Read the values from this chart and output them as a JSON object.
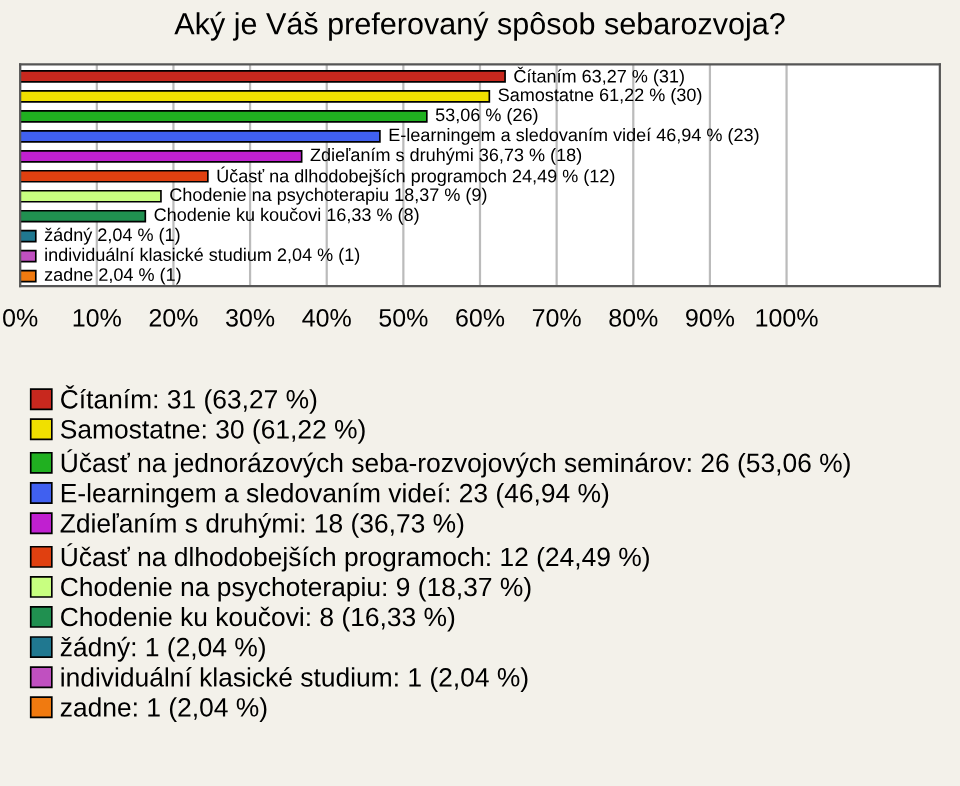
{
  "chart_data": {
    "type": "bar",
    "orientation": "horizontal",
    "title": "Aký je Váš preferovaný spôsob sebarozvoja?",
    "categories": [
      null,
      null,
      null,
      null,
      null,
      null,
      null,
      null,
      null,
      null,
      null
    ],
    "series": [
      {
        "name": "Čítaním: 31 (63,27 %)",
        "color": "#c8281e",
        "values": [
          63.27,
          null,
          null,
          null,
          null,
          null,
          null,
          null,
          null,
          null,
          null
        ],
        "value_labels": [
          "Čítaním 63,27 % (31)",
          null,
          null,
          null,
          null,
          null,
          null,
          null,
          null,
          null,
          null
        ]
      },
      {
        "name": "Samostatne: 30 (61,22 %)",
        "color": "#f0e000",
        "values": [
          null,
          61.22,
          null,
          null,
          null,
          null,
          null,
          null,
          null,
          null,
          null
        ],
        "value_labels": [
          null,
          "Samostatne 61,22 % (30)",
          null,
          null,
          null,
          null,
          null,
          null,
          null,
          null,
          null
        ]
      },
      {
        "name": "Účasť na jednorázových seba-rozvojových seminárov: 26 (53,06 %)",
        "color": "#20b020",
        "values": [
          null,
          null,
          53.06,
          null,
          null,
          null,
          null,
          null,
          null,
          null,
          null
        ],
        "value_labels": [
          null,
          null,
          "53,06 % (26)",
          null,
          null,
          null,
          null,
          null,
          null,
          null,
          null
        ]
      },
      {
        "name": "E-learningem a sledovaním videí: 23 (46,94 %)",
        "color": "#4060f0",
        "values": [
          null,
          null,
          null,
          46.94,
          null,
          null,
          null,
          null,
          null,
          null,
          null
        ],
        "value_labels": [
          null,
          null,
          null,
          "E-learningem a sledovaním videí 46,94 % (23)",
          null,
          null,
          null,
          null,
          null,
          null,
          null
        ]
      },
      {
        "name": "Zdieľaním s druhými: 18 (36,73 %)",
        "color": "#c020d0",
        "values": [
          null,
          null,
          null,
          null,
          36.73,
          null,
          null,
          null,
          null,
          null,
          null
        ],
        "value_labels": [
          null,
          null,
          null,
          null,
          "Zdieľaním s druhými 36,73 % (18)",
          null,
          null,
          null,
          null,
          null,
          null
        ]
      },
      {
        "name": "Účasť na dlhodobejších programoch: 12 (24,49 %)",
        "color": "#e04010",
        "values": [
          null,
          null,
          null,
          null,
          null,
          24.49,
          null,
          null,
          null,
          null,
          null
        ],
        "value_labels": [
          null,
          null,
          null,
          null,
          null,
          "Účasť na dlhodobejších programoch 24,49 % (12)",
          null,
          null,
          null,
          null,
          null
        ]
      },
      {
        "name": "Chodenie na psychoterapiu: 9 (18,37 %)",
        "color": "#c8ff80",
        "values": [
          null,
          null,
          null,
          null,
          null,
          null,
          18.37,
          null,
          null,
          null,
          null
        ],
        "value_labels": [
          null,
          null,
          null,
          null,
          null,
          null,
          "Chodenie na psychoterapiu 18,37 % (9)",
          null,
          null,
          null,
          null
        ]
      },
      {
        "name": "Chodenie ku koučovi: 8 (16,33 %)",
        "color": "#209050",
        "values": [
          null,
          null,
          null,
          null,
          null,
          null,
          null,
          16.33,
          null,
          null,
          null
        ],
        "value_labels": [
          null,
          null,
          null,
          null,
          null,
          null,
          null,
          "Chodenie ku koučovi 16,33 % (8)",
          null,
          null,
          null
        ]
      },
      {
        "name": "žádný: 1 (2,04 %)",
        "color": "#207890",
        "values": [
          null,
          null,
          null,
          null,
          null,
          null,
          null,
          null,
          2.04,
          null,
          null
        ],
        "value_labels": [
          null,
          null,
          null,
          null,
          null,
          null,
          null,
          null,
          "žádný 2,04 % (1)",
          null,
          null
        ]
      },
      {
        "name": "individuální klasické studium: 1 (2,04 %)",
        "color": "#c050c0",
        "values": [
          null,
          null,
          null,
          null,
          null,
          null,
          null,
          null,
          null,
          2.04,
          null
        ],
        "value_labels": [
          null,
          null,
          null,
          null,
          null,
          null,
          null,
          null,
          null,
          "individuální klasické studium 2,04 % (1)",
          null
        ]
      },
      {
        "name": "zadne: 1 (2,04 %)",
        "color": "#f07a10",
        "values": [
          null,
          null,
          null,
          null,
          null,
          null,
          null,
          null,
          null,
          null,
          2.04
        ],
        "value_labels": [
          null,
          null,
          null,
          null,
          null,
          null,
          null,
          null,
          null,
          null,
          "zadne 2,04 % (1)"
        ]
      }
    ],
    "xlim": [
      0,
      120
    ],
    "xticks": [
      {
        "value": 0,
        "label": "0%"
      },
      {
        "value": 10,
        "label": "10%"
      },
      {
        "value": 20,
        "label": "20%"
      },
      {
        "value": 30,
        "label": "30%"
      },
      {
        "value": 40,
        "label": "40%"
      },
      {
        "value": 50,
        "label": "50%"
      },
      {
        "value": 60,
        "label": "60%"
      },
      {
        "value": 70,
        "label": "70%"
      },
      {
        "value": 80,
        "label": "80%"
      },
      {
        "value": 90,
        "label": "90%"
      },
      {
        "value": 100,
        "label": "100%"
      }
    ],
    "grid": "x",
    "legend": "bottom",
    "tick_labels": "x"
  }
}
